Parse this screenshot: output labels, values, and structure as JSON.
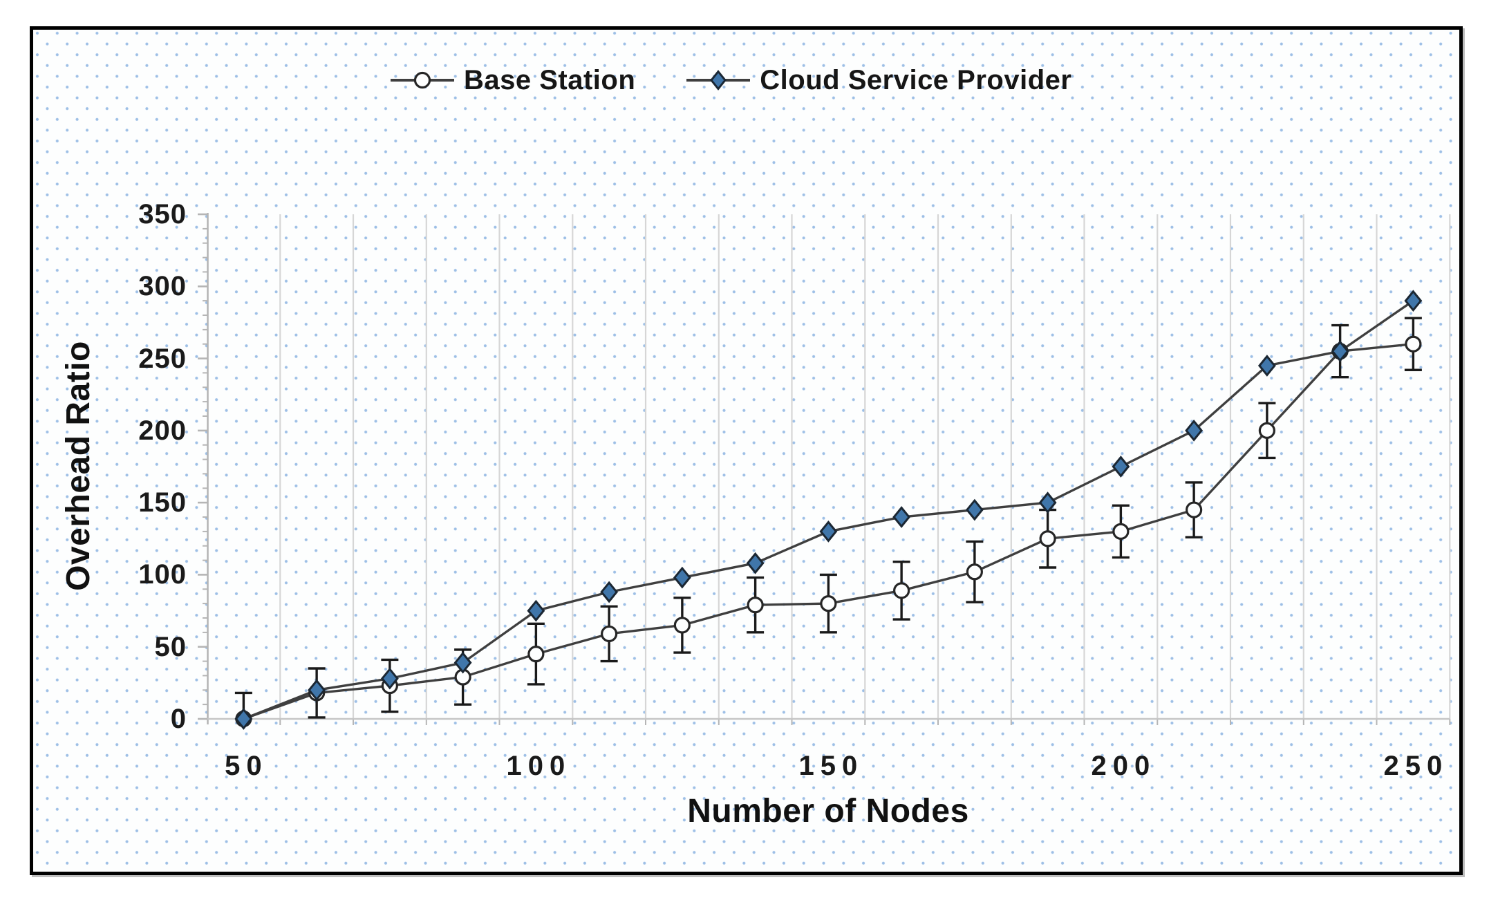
{
  "chart": {
    "xlabel": "Number of Nodes",
    "ylabel": "Overhead Ratio"
  },
  "chart_data": {
    "type": "line",
    "title": "",
    "xlabel": "Number of Nodes",
    "ylabel": "Overhead Ratio",
    "x": [
      50,
      62.5,
      75,
      87.5,
      100,
      112.5,
      125,
      137.5,
      150,
      162.5,
      175,
      187.5,
      200,
      212.5,
      225,
      237.5,
      250
    ],
    "x_tick_labels": [
      "50",
      "100",
      "150",
      "200",
      "250"
    ],
    "x_tick_values": [
      50,
      100,
      150,
      200,
      250
    ],
    "y_ticks": [
      0,
      50,
      100,
      150,
      200,
      250,
      300,
      350
    ],
    "y_minor_step": 10,
    "ylim": [
      0,
      350
    ],
    "grid": "vertical-only",
    "legend_position": "top-center",
    "background_pattern": "light-blue-dot-grid",
    "series": [
      {
        "name": "Base Station",
        "marker": "circle",
        "values": [
          0,
          18,
          23,
          29,
          45,
          59,
          65,
          79,
          80,
          89,
          102,
          125,
          130,
          145,
          200,
          255,
          260
        ],
        "error_bars": [
          18,
          17,
          18,
          19,
          21,
          19,
          19,
          19,
          20,
          20,
          21,
          20,
          18,
          19,
          19,
          18,
          18
        ]
      },
      {
        "name": "Cloud Service Provider",
        "marker": "diamond",
        "values": [
          0,
          20,
          28,
          39,
          75,
          88,
          98,
          108,
          130,
          140,
          145,
          150,
          175,
          200,
          245,
          255,
          290
        ]
      }
    ],
    "colors": {
      "series_line": "#3f3f3f",
      "diamond_fill": "#4076aa",
      "diamond_stroke": "#1b2733",
      "circle_fill": "#fdfefe",
      "circle_stroke": "#262626",
      "error_bar": "#1a1a1a",
      "gridline": "#d6d6d6",
      "axis_line": "#b5b5b5",
      "dot_pattern": "#9dbfe6",
      "text": "#111111",
      "frame_border": "#000000"
    }
  }
}
